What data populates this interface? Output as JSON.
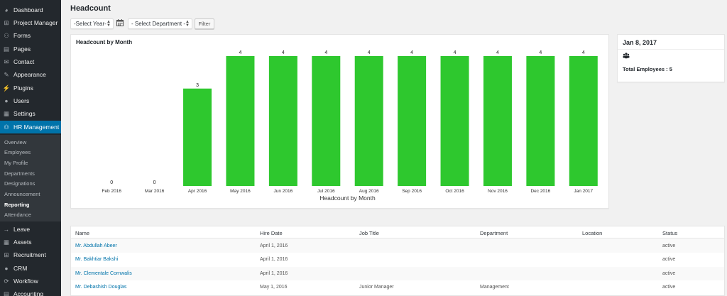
{
  "sidebar": {
    "items": [
      {
        "label": "Dashboard",
        "icon": "dashboard-icon",
        "glyph": "◕"
      },
      {
        "label": "Project Manager",
        "icon": "project-manager-icon",
        "glyph": "⊞"
      },
      {
        "label": "Forms",
        "icon": "forms-icon",
        "glyph": "⚇"
      },
      {
        "label": "Pages",
        "icon": "pages-icon",
        "glyph": "▤"
      },
      {
        "label": "Contact",
        "icon": "contact-icon",
        "glyph": "✉"
      },
      {
        "label": "Appearance",
        "icon": "appearance-icon",
        "glyph": "✎"
      },
      {
        "label": "Plugins",
        "icon": "plugins-icon",
        "glyph": "⚡"
      },
      {
        "label": "Users",
        "icon": "users-icon",
        "glyph": "●"
      },
      {
        "label": "Settings",
        "icon": "settings-icon",
        "glyph": "▦"
      },
      {
        "label": "HR Management",
        "icon": "hr-management-icon",
        "glyph": "⚇"
      }
    ],
    "submenu": [
      "Overview",
      "Employees",
      "My Profile",
      "Departments",
      "Designations",
      "Announcement",
      "Reporting",
      "Attendance"
    ],
    "current_submenu": "Reporting",
    "lower_items": [
      {
        "label": "Leave",
        "icon": "leave-icon",
        "glyph": "→"
      },
      {
        "label": "Assets",
        "icon": "assets-icon",
        "glyph": "▦"
      },
      {
        "label": "Recruitment",
        "icon": "recruitment-icon",
        "glyph": "⊞"
      },
      {
        "label": "CRM",
        "icon": "crm-icon",
        "glyph": "●"
      },
      {
        "label": "Workflow",
        "icon": "workflow-icon",
        "glyph": "⟳"
      },
      {
        "label": "Accounting",
        "icon": "accounting-icon",
        "glyph": "▤"
      }
    ]
  },
  "page": {
    "title": "Headcount"
  },
  "filters": {
    "year_select": "-Select Year-",
    "department_select": "- Select Department -",
    "filter_button": "Filter"
  },
  "chart_panel": {
    "header": "Headcount by Month"
  },
  "chart_data": {
    "type": "bar",
    "title": "Headcount by Month",
    "xlabel": "Headcount by Month",
    "ylabel": "",
    "categories": [
      "Feb 2016",
      "Mar 2016",
      "Apr 2016",
      "May 2016",
      "Jun 2016",
      "Jul 2016",
      "Aug 2016",
      "Sep 2016",
      "Oct 2016",
      "Nov 2016",
      "Dec 2016",
      "Jan 2017"
    ],
    "values": [
      0,
      0,
      3,
      4,
      4,
      4,
      4,
      4,
      4,
      4,
      4,
      4
    ],
    "ylim": [
      0,
      4
    ],
    "bar_color": "#2ec82e",
    "grid": false
  },
  "side_panel": {
    "date": "Jan 8, 2017",
    "icon": "group-icon",
    "total_label": "Total Employees : 5"
  },
  "table": {
    "columns": [
      "Name",
      "Hire Date",
      "Job Title",
      "Department",
      "Location",
      "Status"
    ],
    "rows": [
      [
        "Mr. Abdullah Abeer",
        "April 1, 2016",
        "",
        "",
        "",
        "active"
      ],
      [
        "Mr. Bakhtiar Bakshi",
        "April 1, 2016",
        "",
        "",
        "",
        "active"
      ],
      [
        "Mr. Clementale Cornwalis",
        "April 1, 2016",
        "",
        "",
        "",
        "active"
      ],
      [
        "Mr. Debashish Douglas",
        "May 1, 2016",
        "Junior Manager",
        "Management",
        "",
        "active"
      ]
    ]
  },
  "colors": {
    "sidebar_bg": "#23282d",
    "active_bg": "#0073aa",
    "bar": "#2ec82e",
    "link": "#0073aa"
  }
}
